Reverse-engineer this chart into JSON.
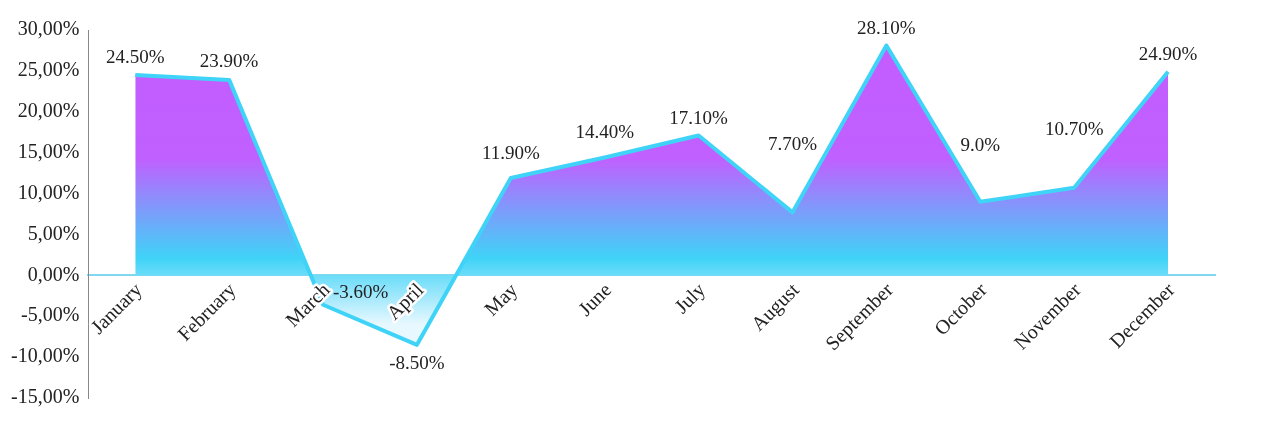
{
  "chart_data": {
    "type": "area",
    "categories": [
      "January",
      "February",
      "March",
      "April",
      "May",
      "June",
      "July",
      "August",
      "September",
      "October",
      "November",
      "December"
    ],
    "series": [
      {
        "color": "#3fd3f7",
        "values": [
          24.5,
          23.9,
          -3.6,
          -8.5,
          11.9,
          14.4,
          17.1,
          7.7,
          28.1,
          9.0,
          10.7,
          24.9
        ],
        "value_labels": [
          "24.50%",
          "23.90%",
          "-3.60%",
          "-8.50%",
          "11.90%",
          "14.40%",
          "17.10%",
          "7.70%",
          "28.10%",
          "9.0%",
          "10.70%",
          "24.90%"
        ]
      }
    ],
    "ylim": [
      -15,
      30
    ],
    "yticks": [
      {
        "value": -15,
        "label": "-15,00%"
      },
      {
        "value": -10,
        "label": "-10,00%"
      },
      {
        "value": -5,
        "label": "-5,00%"
      },
      {
        "value": 0,
        "label": "0,00%"
      },
      {
        "value": 5,
        "label": "5,00%"
      },
      {
        "value": 10,
        "label": "10,00%"
      },
      {
        "value": 15,
        "label": "15,00%"
      },
      {
        "value": 20,
        "label": "20,00%"
      },
      {
        "value": 25,
        "label": "25,00%"
      },
      {
        "value": 30,
        "label": "30,00%"
      }
    ],
    "grid": false,
    "legend": false
  }
}
